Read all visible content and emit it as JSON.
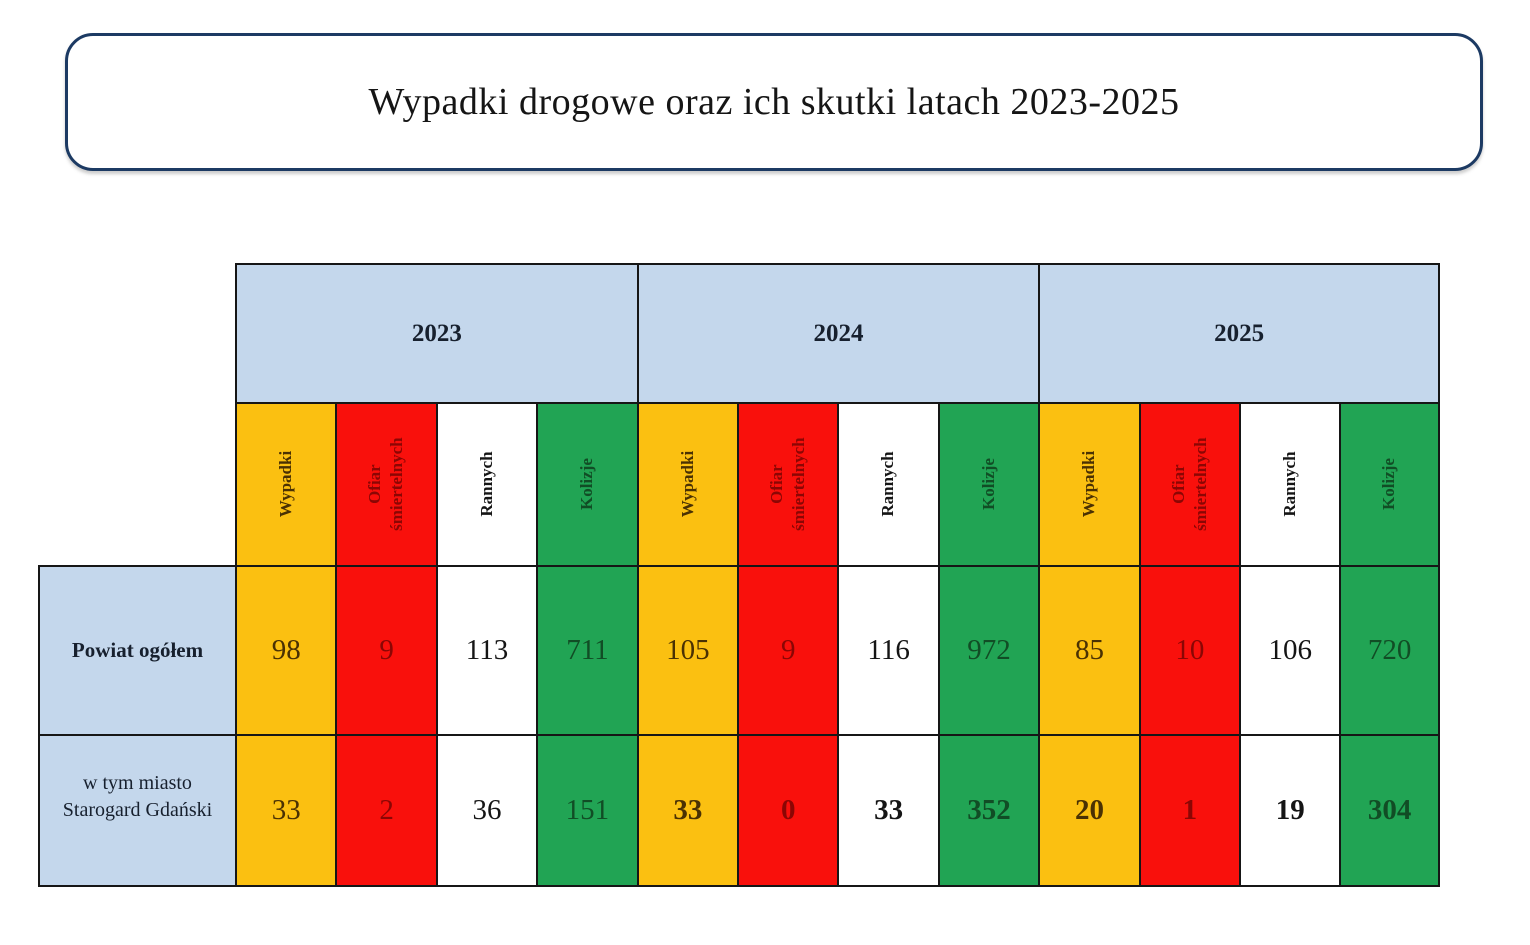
{
  "title": "Wypadki drogowe oraz ich skutki latach 2023-2025",
  "colors": {
    "title_border": "#1c3a63",
    "grid_line": "#161616",
    "year_band_bg": "#c4d7ec",
    "wypadki_bg": "#fbc011",
    "ofiar_bg": "#f9100c",
    "rannych_bg": "#ffffff",
    "kolizje_bg": "#21a454",
    "wypadki_text": "#4a3103",
    "ofiar_text": "#8b0604",
    "rannych_text": "#151515",
    "kolizje_text": "#114d25"
  },
  "table": {
    "years": [
      "2023",
      "2024",
      "2025"
    ],
    "metrics": [
      {
        "label": "Wypadki",
        "type": "orange"
      },
      {
        "label": "Ofiar śmiertelnych",
        "type": "red"
      },
      {
        "label": "Rannych",
        "type": "white"
      },
      {
        "label": "Kolizje",
        "type": "green"
      }
    ],
    "rows": [
      {
        "label": "Powiat ogółem",
        "values": [
          98,
          9,
          113,
          711,
          105,
          9,
          116,
          972,
          85,
          10,
          106,
          720
        ]
      },
      {
        "label": "w tym miasto Starogard Gdański",
        "values": [
          33,
          2,
          36,
          151,
          33,
          0,
          33,
          352,
          20,
          1,
          19,
          304
        ]
      }
    ]
  }
}
